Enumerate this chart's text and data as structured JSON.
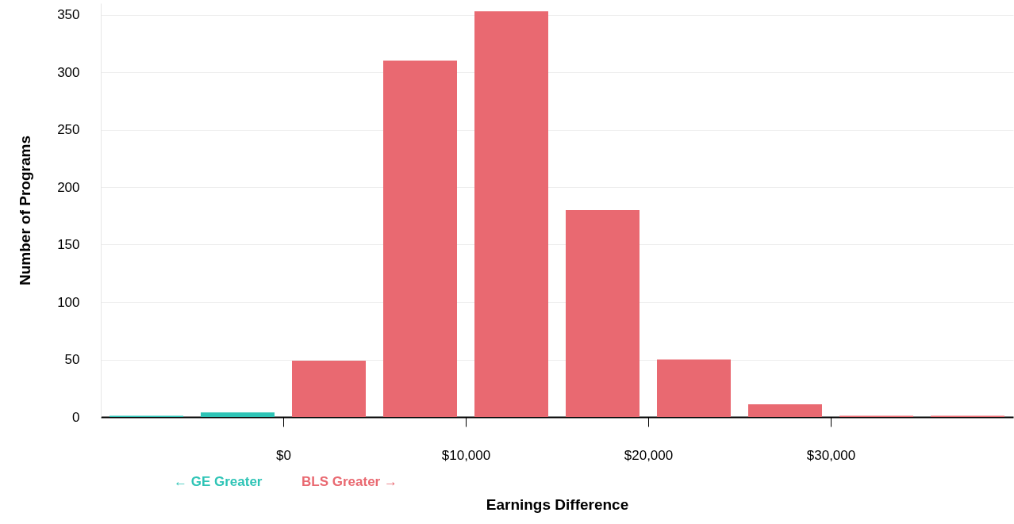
{
  "chart_data": {
    "type": "histogram",
    "xlabel": "Earnings Difference",
    "ylabel": "Number of Programs",
    "bins": [
      -10000,
      -5000,
      0,
      5000,
      10000,
      15000,
      20000,
      25000,
      30000,
      35000,
      40000
    ],
    "values": [
      1,
      4,
      49,
      310,
      353,
      180,
      50,
      11,
      1,
      1
    ],
    "colors": [
      "#2ec4b6",
      "#2ec4b6",
      "#e96971",
      "#e96971",
      "#e96971",
      "#e96971",
      "#e96971",
      "#e96971",
      "#e96971",
      "#e96971"
    ],
    "xlim": [
      -10000,
      40000
    ],
    "xticks": [
      {
        "value": 0,
        "label": "$0"
      },
      {
        "value": 10000,
        "label": "$10,000"
      },
      {
        "value": 20000,
        "label": "$20,000"
      },
      {
        "value": 30000,
        "label": "$30,000"
      }
    ],
    "ylim": [
      0,
      360
    ],
    "yticks": [
      0,
      50,
      100,
      150,
      200,
      250,
      300,
      350
    ],
    "grid": "y",
    "annotations": [
      "← GE Greater",
      "BLS Greater →"
    ]
  }
}
